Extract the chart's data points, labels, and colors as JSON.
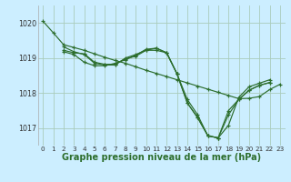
{
  "background_color": "#cceeff",
  "grid_color": "#aaccbb",
  "line_color": "#2d6e2d",
  "marker_color": "#2d6e2d",
  "xlabel": "Graphe pression niveau de la mer (hPa)",
  "xlabel_fontsize": 7.0,
  "ylim": [
    1016.5,
    1020.5
  ],
  "xlim": [
    -0.5,
    23.5
  ],
  "yticks": [
    1017,
    1018,
    1019,
    1020
  ],
  "xticks": [
    0,
    1,
    2,
    3,
    4,
    5,
    6,
    7,
    8,
    9,
    10,
    11,
    12,
    13,
    14,
    15,
    16,
    17,
    18,
    19,
    20,
    21,
    22,
    23
  ],
  "series_x": [
    [
      0,
      1,
      2,
      3,
      4,
      5,
      6,
      7,
      8,
      9,
      10,
      11,
      12,
      13,
      14,
      15,
      16,
      17,
      18,
      19,
      20,
      21,
      22,
      23
    ],
    [
      2,
      3,
      4,
      5,
      6,
      7,
      8,
      9,
      10,
      11,
      12,
      13,
      14,
      15,
      16,
      17,
      18,
      19,
      20,
      21,
      22
    ],
    [
      2,
      3,
      4,
      5,
      6,
      7,
      8,
      9,
      10,
      11,
      12,
      13,
      14,
      15,
      16,
      17,
      18,
      19,
      20,
      21,
      22
    ],
    [
      2,
      3,
      4,
      5,
      6,
      7,
      8,
      9,
      10,
      11,
      12,
      13,
      14,
      15,
      16,
      17,
      18,
      19,
      20,
      21,
      22
    ]
  ],
  "series_y": [
    [
      1020.05,
      1019.72,
      1019.38,
      1019.3,
      1019.22,
      1019.12,
      1019.02,
      1018.93,
      1018.85,
      1018.75,
      1018.65,
      1018.56,
      1018.47,
      1018.38,
      1018.29,
      1018.2,
      1018.11,
      1018.02,
      1017.93,
      1017.84,
      1017.85,
      1017.9,
      1018.1,
      1018.25
    ],
    [
      1019.32,
      1019.18,
      1019.1,
      1018.85,
      1018.8,
      1018.8,
      1019.0,
      1019.1,
      1019.22,
      1019.22,
      1019.15,
      1018.55,
      1017.72,
      1017.3,
      1016.78,
      1016.72,
      1017.5,
      1017.82,
      1018.08,
      1018.22,
      1018.3
    ],
    [
      1019.18,
      1019.1,
      1018.88,
      1018.78,
      1018.78,
      1018.85,
      1018.95,
      1019.08,
      1019.25,
      1019.28,
      1019.15,
      1018.55,
      1017.82,
      1017.38,
      1016.78,
      1016.72,
      1017.08,
      1017.88,
      1018.18,
      1018.28,
      1018.38
    ],
    [
      1019.22,
      1019.15,
      1019.12,
      1018.88,
      1018.82,
      1018.82,
      1018.98,
      1019.05,
      1019.22,
      1019.28,
      1019.15,
      1018.55,
      1017.72,
      1017.3,
      1016.78,
      1016.72,
      1017.38,
      1017.82,
      1018.08,
      1018.22,
      1018.3
    ]
  ]
}
